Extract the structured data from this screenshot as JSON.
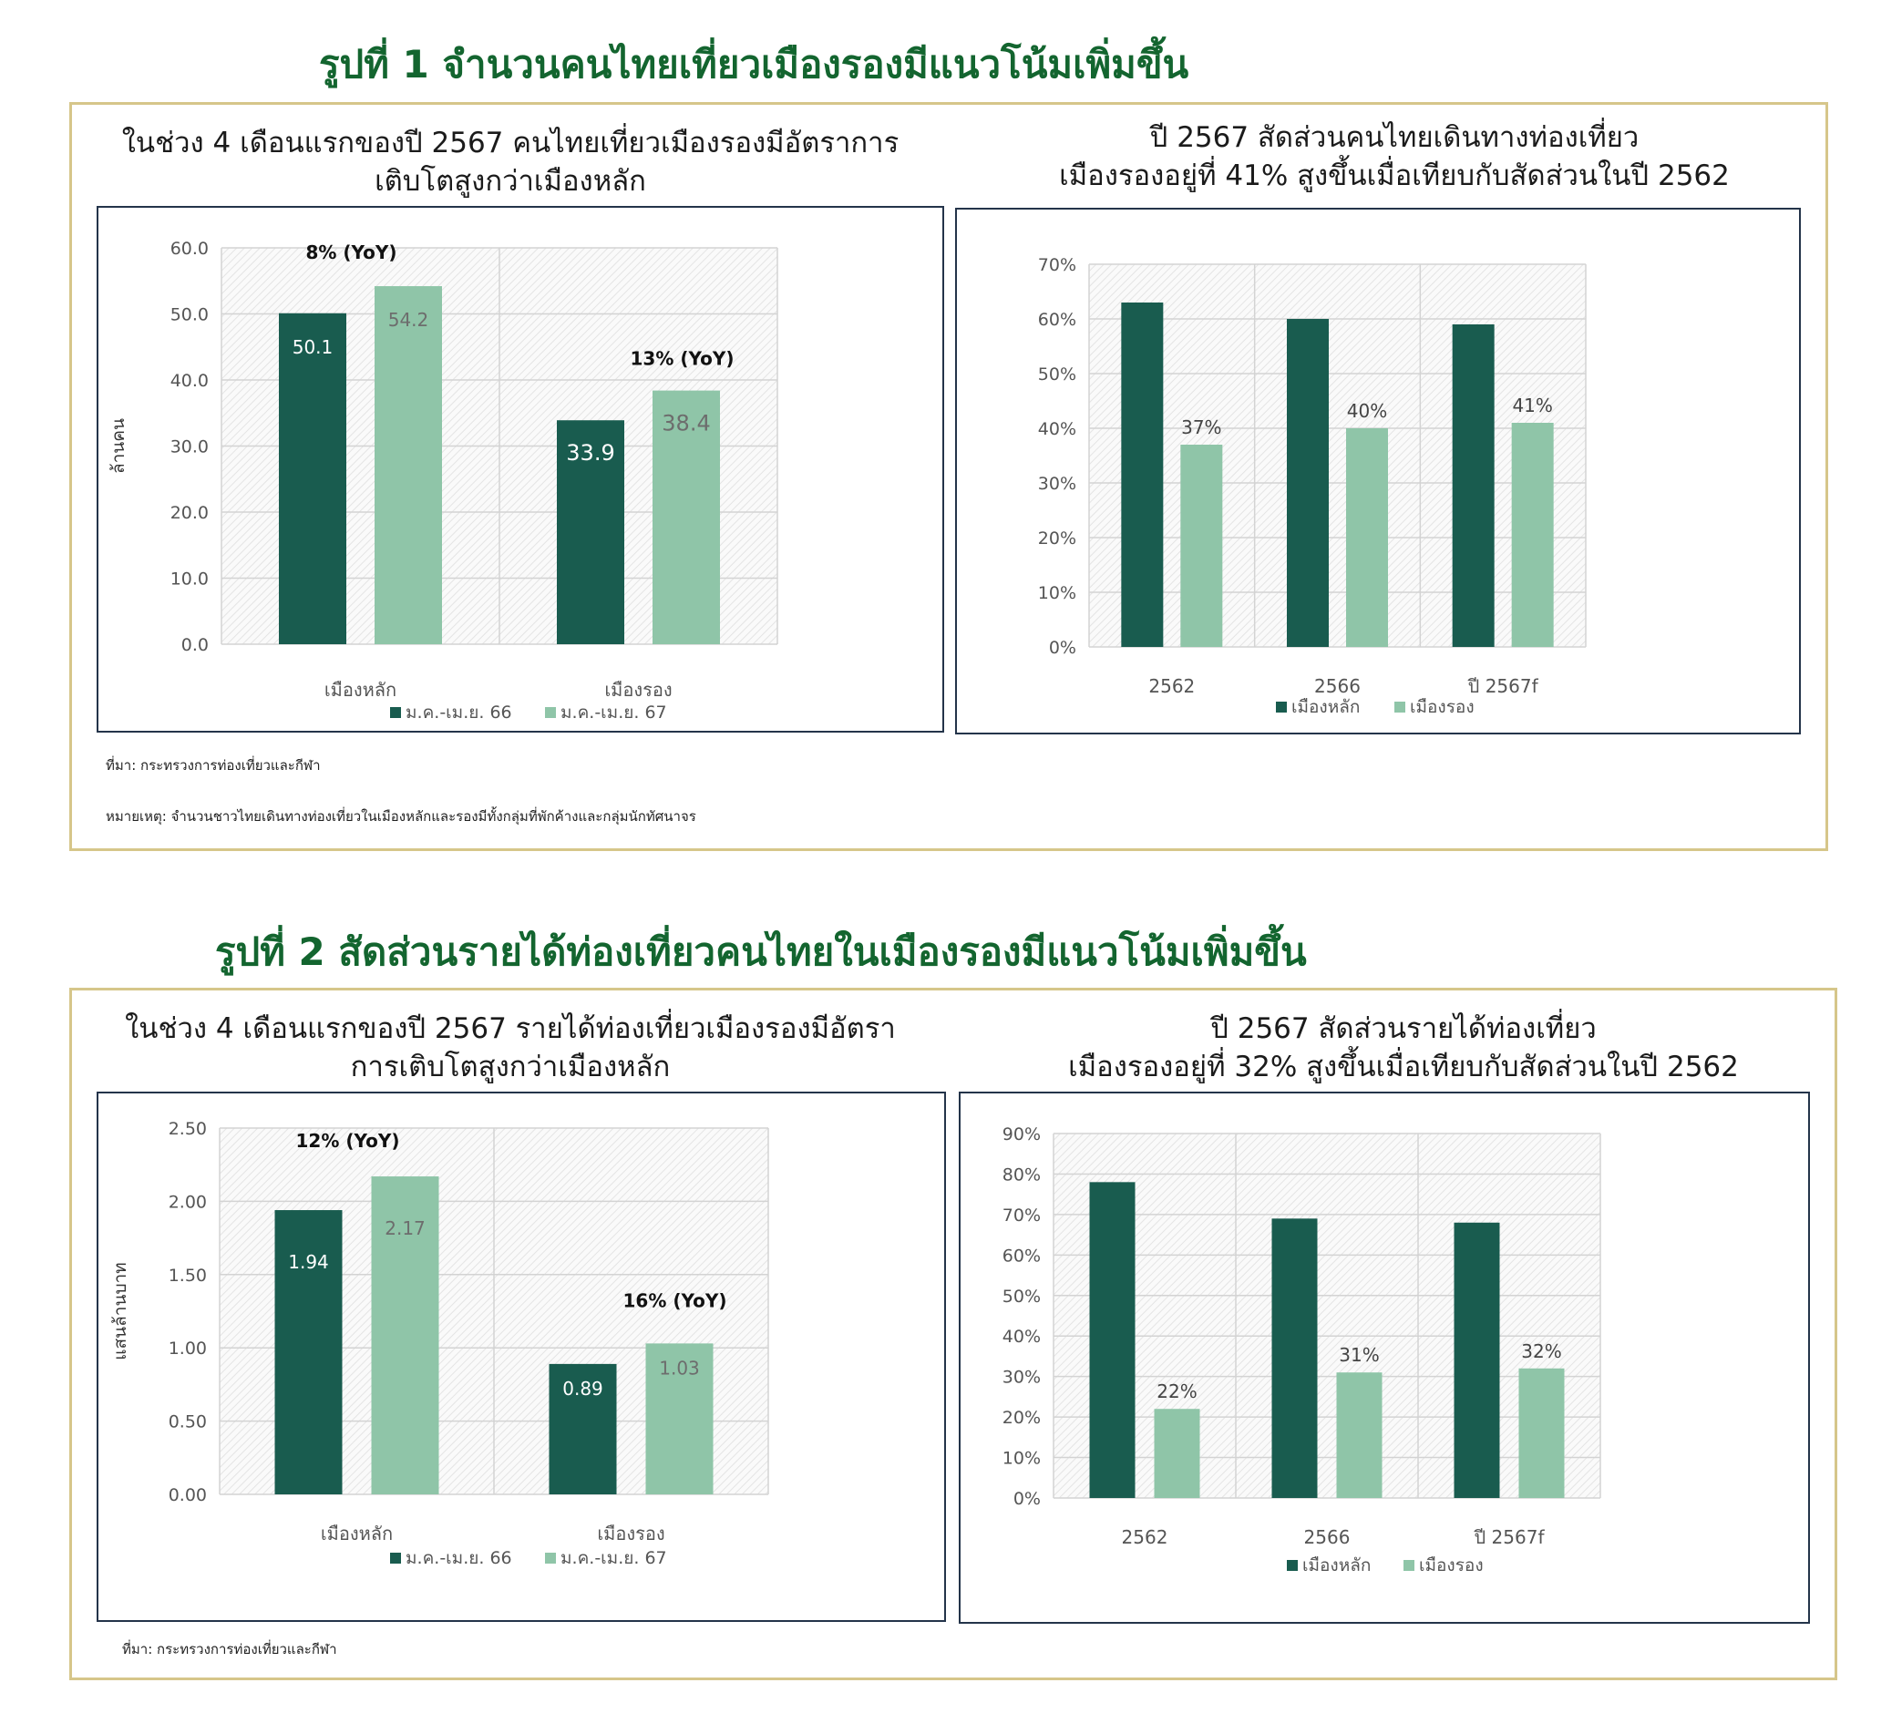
{
  "colors": {
    "dark_green": "#195c4f",
    "light_green": "#8fc5a8",
    "title_green": "#13652f",
    "frame_gold": "#d6c68a",
    "chart_border": "#24344a"
  },
  "fig1": {
    "title": "รูปที่ 1 จำนวนคนไทยเที่ยวเมืองรองมีแนวโน้มเพิ่มขึ้น",
    "left_title_1": "ในช่วง 4 เดือนแรกของปี 2567 คนไทยเที่ยวเมืองรองมีอัตราการ",
    "left_title_2": "เติบโตสูงกว่าเมืองหลัก",
    "right_title_1": "ปี 2567 สัดส่วนคนไทยเดินทางท่องเที่ยว",
    "right_title_2": "เมืองรองอยู่ที่ 41% สูงขึ้นเมื่อเทียบกับสัดส่วนในปี 2562",
    "source": "ที่มา: กระทรวงการท่องเที่ยวและกีฬา",
    "remark": "หมายเหตุ: จำนวนชาวไทยเดินทางท่องเที่ยวในเมืองหลักและรองมีทั้งกลุ่มที่พักค้างและกลุ่มนักทัศนาจร"
  },
  "fig2": {
    "title": "รูปที่ 2 สัดส่วนรายได้ท่องเที่ยวคนไทยในเมืองรองมีแนวโน้มเพิ่มขึ้น",
    "left_title_1": "ในช่วง 4 เดือนแรกของปี 2567 รายได้ท่องเที่ยวเมืองรองมีอัตรา",
    "left_title_2": "การเติบโตสูงกว่าเมืองหลัก",
    "right_title_1": "ปี 2567 สัดส่วนรายได้ท่องเที่ยว",
    "right_title_2": "เมืองรองอยู่ที่ 32% สูงขึ้นเมื่อเทียบกับสัดส่วนในปี 2562",
    "source": "ที่มา: กระทรวงการท่องเที่ยวและกีฬา"
  },
  "chart_data": [
    {
      "id": "c1",
      "type": "bar",
      "categories": [
        "เมืองหลัก",
        "เมืองรอง"
      ],
      "series": [
        {
          "name": "ม.ค.-เม.ย. 66",
          "values": [
            50.1,
            33.9
          ],
          "labels": [
            "50.1",
            "33.9"
          ]
        },
        {
          "name": "ม.ค.-เม.ย. 67",
          "values": [
            54.2,
            38.4
          ],
          "labels": [
            "54.2",
            "38.4"
          ]
        }
      ],
      "annotations": [
        "8% (YoY)",
        "13% (YoY)"
      ],
      "ylabel": "ล้านคน",
      "ylim": [
        0,
        60
      ],
      "yticks": [
        "0.0",
        "10.0",
        "20.0",
        "30.0",
        "40.0",
        "50.0",
        "60.0"
      ],
      "grid": true,
      "legend": "bottom"
    },
    {
      "id": "c2",
      "type": "bar",
      "categories": [
        "2562",
        "2566",
        "ปี 2567f"
      ],
      "series": [
        {
          "name": "เมืองหลัก",
          "values": [
            63,
            60,
            59
          ],
          "labels": [
            "",
            "",
            ""
          ]
        },
        {
          "name": "เมืองรอง",
          "values": [
            37,
            40,
            41
          ],
          "labels": [
            "37%",
            "40%",
            "41%"
          ]
        }
      ],
      "annotations": [],
      "ylabel": "",
      "ylim": [
        0,
        70
      ],
      "yticks": [
        "0%",
        "10%",
        "20%",
        "30%",
        "40%",
        "50%",
        "60%",
        "70%"
      ],
      "grid": true,
      "legend": "bottom"
    },
    {
      "id": "c3",
      "type": "bar",
      "categories": [
        "เมืองหลัก",
        "เมืองรอง"
      ],
      "series": [
        {
          "name": "ม.ค.-เม.ย. 66",
          "values": [
            1.94,
            0.89
          ],
          "labels": [
            "1.94",
            "0.89"
          ]
        },
        {
          "name": "ม.ค.-เม.ย. 67",
          "values": [
            2.17,
            1.03
          ],
          "labels": [
            "2.17",
            "1.03"
          ]
        }
      ],
      "annotations": [
        "12% (YoY)",
        "16% (YoY)"
      ],
      "ylabel": "แสนล้านบาท",
      "ylim": [
        0,
        2.5
      ],
      "yticks": [
        "0.00",
        "0.50",
        "1.00",
        "1.50",
        "2.00",
        "2.50"
      ],
      "grid": true,
      "legend": "bottom"
    },
    {
      "id": "c4",
      "type": "bar",
      "categories": [
        "2562",
        "2566",
        "ปี 2567f"
      ],
      "series": [
        {
          "name": "เมืองหลัก",
          "values": [
            78,
            69,
            68
          ],
          "labels": [
            "",
            "",
            ""
          ]
        },
        {
          "name": "เมืองรอง",
          "values": [
            22,
            31,
            32
          ],
          "labels": [
            "22%",
            "31%",
            "32%"
          ]
        }
      ],
      "annotations": [],
      "ylabel": "",
      "ylim": [
        0,
        90
      ],
      "yticks": [
        "0%",
        "10%",
        "20%",
        "30%",
        "40%",
        "50%",
        "60%",
        "70%",
        "80%",
        "90%"
      ],
      "grid": true,
      "legend": "bottom"
    }
  ]
}
